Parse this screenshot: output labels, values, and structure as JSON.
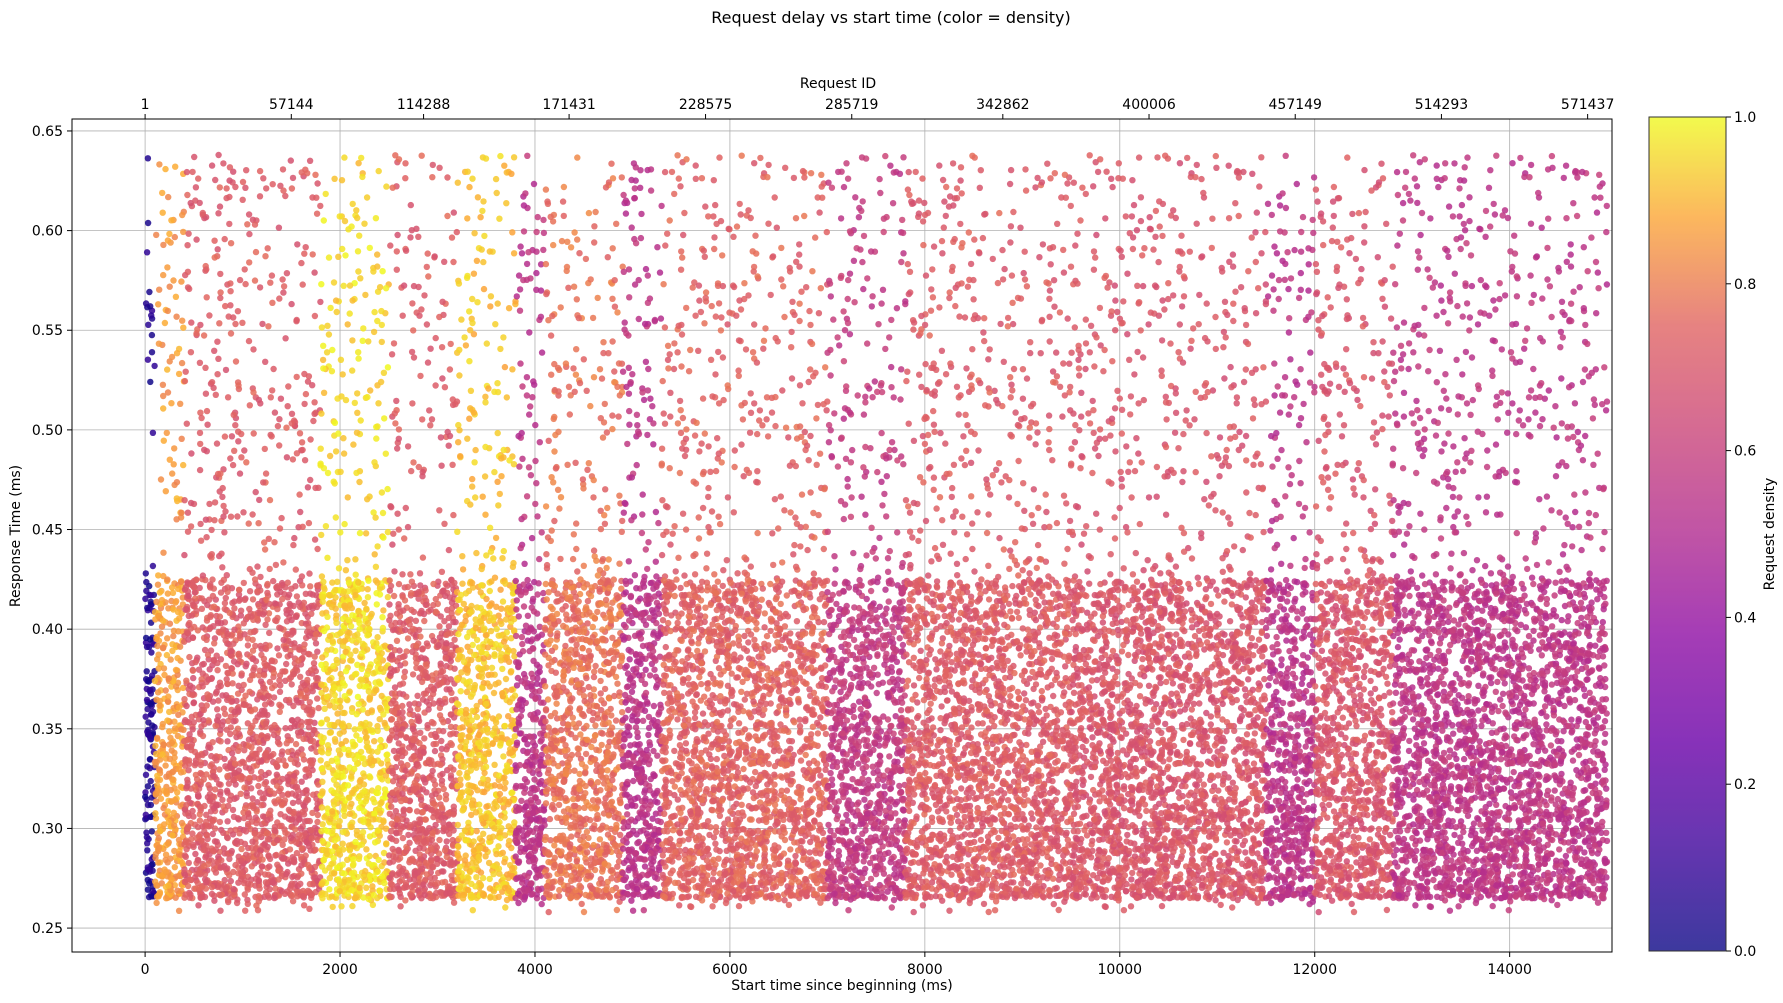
{
  "chart_data": {
    "type": "scatter",
    "title": "Request delay vs start time (color = density)",
    "xlabel": "Start time since beginning (ms)",
    "ylabel": "Response Time (ms)",
    "top_xlabel": "Request ID",
    "colorbar_label": "Request density",
    "colormap": "plasma",
    "grid": true,
    "xlim": [
      -750,
      15050
    ],
    "ylim": [
      0.238,
      0.656
    ],
    "x_ticks": [
      {
        "value": 0,
        "label": "0"
      },
      {
        "value": 2000,
        "label": "2000"
      },
      {
        "value": 4000,
        "label": "4000"
      },
      {
        "value": 6000,
        "label": "6000"
      },
      {
        "value": 8000,
        "label": "8000"
      },
      {
        "value": 10000,
        "label": "10000"
      },
      {
        "value": 12000,
        "label": "12000"
      },
      {
        "value": 14000,
        "label": "14000"
      }
    ],
    "y_ticks": [
      {
        "value": 0.25,
        "label": "0.25"
      },
      {
        "value": 0.3,
        "label": "0.30"
      },
      {
        "value": 0.35,
        "label": "0.35"
      },
      {
        "value": 0.4,
        "label": "0.40"
      },
      {
        "value": 0.45,
        "label": "0.45"
      },
      {
        "value": 0.5,
        "label": "0.50"
      },
      {
        "value": 0.55,
        "label": "0.55"
      },
      {
        "value": 0.6,
        "label": "0.60"
      },
      {
        "value": 0.65,
        "label": "0.65"
      }
    ],
    "top_ticks": [
      {
        "value": 0,
        "label": "1"
      },
      {
        "value": 1500,
        "label": "57144"
      },
      {
        "value": 2857,
        "label": "114288"
      },
      {
        "value": 4350,
        "label": "171431"
      },
      {
        "value": 5750,
        "label": "228575"
      },
      {
        "value": 7250,
        "label": "285719"
      },
      {
        "value": 8800,
        "label": "342862"
      },
      {
        "value": 10300,
        "label": "400006"
      },
      {
        "value": 11800,
        "label": "457149"
      },
      {
        "value": 13300,
        "label": "514293"
      },
      {
        "value": 14800,
        "label": "571437"
      }
    ],
    "colorbar_ticks": [
      {
        "value": 0.0,
        "label": "0.0"
      },
      {
        "value": 0.2,
        "label": "0.2"
      },
      {
        "value": 0.4,
        "label": "0.4"
      },
      {
        "value": 0.6,
        "label": "0.6"
      },
      {
        "value": 0.8,
        "label": "0.8"
      },
      {
        "value": 1.0,
        "label": "1.0"
      }
    ],
    "colorbar_range": [
      0.0,
      1.0
    ],
    "x_data_range": [
      0,
      15000
    ],
    "y_data_range": [
      0.258,
      0.638
    ],
    "density_segments": [
      {
        "x_start": 0,
        "x_end": 100,
        "density": 0.05
      },
      {
        "x_start": 100,
        "x_end": 400,
        "density": 0.86
      },
      {
        "x_start": 400,
        "x_end": 1800,
        "density": 0.72
      },
      {
        "x_start": 1800,
        "x_end": 2500,
        "density": 0.95
      },
      {
        "x_start": 2500,
        "x_end": 3200,
        "density": 0.72
      },
      {
        "x_start": 3200,
        "x_end": 3800,
        "density": 0.92
      },
      {
        "x_start": 3800,
        "x_end": 4100,
        "density": 0.55
      },
      {
        "x_start": 4100,
        "x_end": 4900,
        "density": 0.78
      },
      {
        "x_start": 4900,
        "x_end": 5300,
        "density": 0.55
      },
      {
        "x_start": 5300,
        "x_end": 7000,
        "density": 0.74
      },
      {
        "x_start": 7000,
        "x_end": 7800,
        "density": 0.58
      },
      {
        "x_start": 7800,
        "x_end": 9500,
        "density": 0.72
      },
      {
        "x_start": 9500,
        "x_end": 11500,
        "density": 0.7
      },
      {
        "x_start": 11500,
        "x_end": 12000,
        "density": 0.55
      },
      {
        "x_start": 12000,
        "x_end": 12800,
        "density": 0.7
      },
      {
        "x_start": 12800,
        "x_end": 15000,
        "density": 0.56
      }
    ]
  }
}
